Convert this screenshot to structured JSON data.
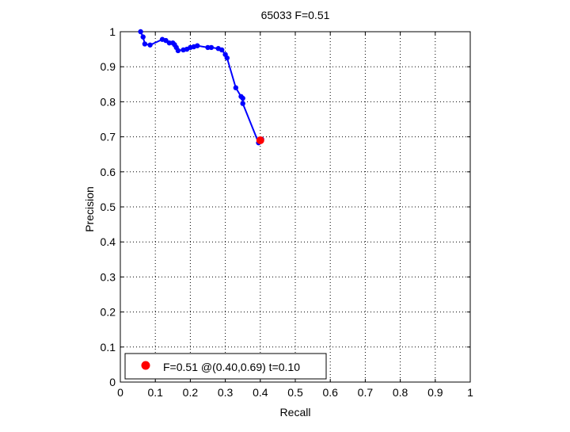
{
  "chart_data": {
    "type": "line",
    "title": "65033 F=0.51",
    "xlabel": "Recall",
    "ylabel": "Precision",
    "xlim": [
      0,
      1
    ],
    "ylim": [
      0,
      1
    ],
    "xticks": [
      "0",
      "0.1",
      "0.2",
      "0.3",
      "0.4",
      "0.5",
      "0.6",
      "0.7",
      "0.8",
      "0.9",
      "1"
    ],
    "yticks": [
      "0",
      "0.1",
      "0.2",
      "0.3",
      "0.4",
      "0.5",
      "0.6",
      "0.7",
      "0.8",
      "0.9",
      "1"
    ],
    "grid": true,
    "legend_position": "bottom-left",
    "series": [
      {
        "name": "",
        "color": "#0000ff",
        "points": [
          [
            0.058,
            1.0
          ],
          [
            0.065,
            0.985
          ],
          [
            0.07,
            0.965
          ],
          [
            0.085,
            0.962
          ],
          [
            0.12,
            0.978
          ],
          [
            0.13,
            0.975
          ],
          [
            0.14,
            0.968
          ],
          [
            0.15,
            0.968
          ],
          [
            0.155,
            0.963
          ],
          [
            0.16,
            0.955
          ],
          [
            0.165,
            0.946
          ],
          [
            0.18,
            0.948
          ],
          [
            0.19,
            0.95
          ],
          [
            0.2,
            0.955
          ],
          [
            0.21,
            0.957
          ],
          [
            0.22,
            0.96
          ],
          [
            0.25,
            0.955
          ],
          [
            0.26,
            0.955
          ],
          [
            0.28,
            0.952
          ],
          [
            0.29,
            0.948
          ],
          [
            0.3,
            0.935
          ],
          [
            0.305,
            0.925
          ],
          [
            0.33,
            0.84
          ],
          [
            0.345,
            0.815
          ],
          [
            0.35,
            0.81
          ],
          [
            0.35,
            0.795
          ],
          [
            0.395,
            0.683
          ],
          [
            0.404,
            0.693
          ]
        ]
      }
    ],
    "best_point": {
      "recall": 0.4,
      "precision": 0.69,
      "color": "#ff0000",
      "legend_label": "F=0.51 @(0.40,0.69) t=0.10"
    }
  }
}
